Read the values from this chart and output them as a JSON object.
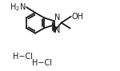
{
  "bg_color": "#ffffff",
  "line_color": "#1a1a1a",
  "line_width": 1.3,
  "font_size": 7.0
}
